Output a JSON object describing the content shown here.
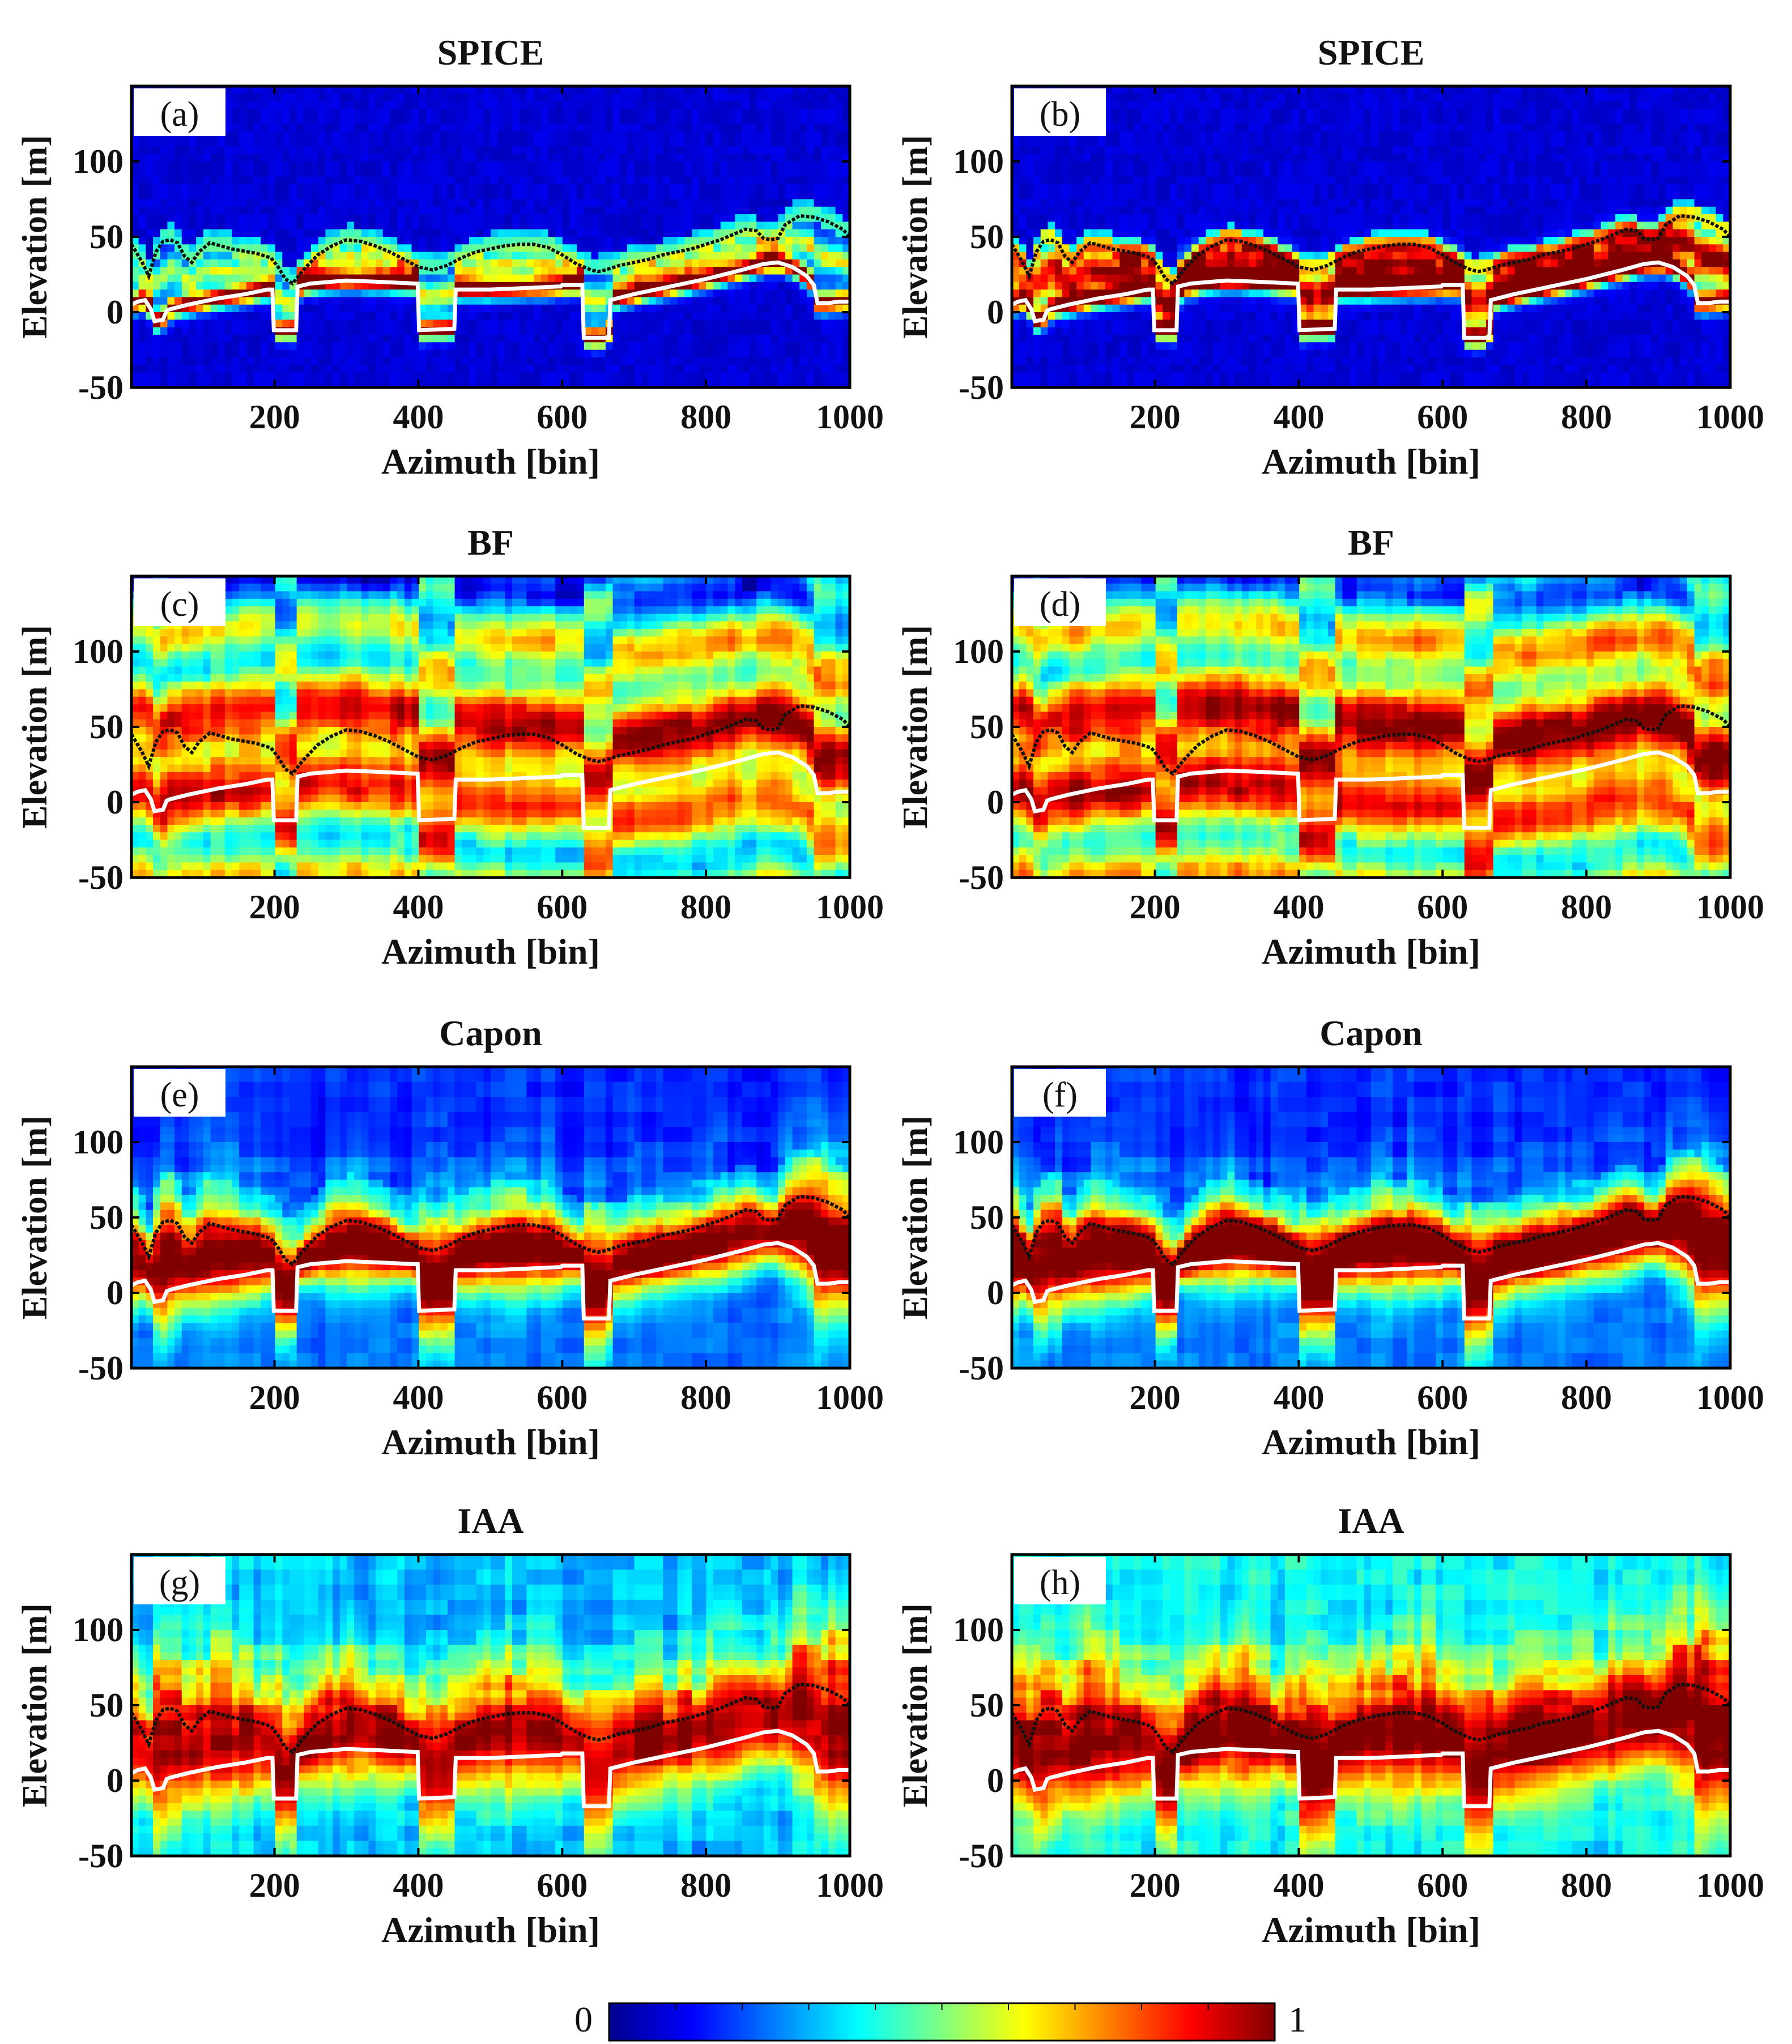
{
  "chart_data": [
    {
      "type": "heatmap",
      "panel_label": "(a)",
      "title": "SPICE",
      "method": "spice",
      "xlabel": "Azimuth [bin]",
      "ylabel": "Elevation [m]",
      "xlim": [
        1,
        1000
      ],
      "ylim": [
        -50,
        150
      ],
      "xticks": [
        "200",
        "400",
        "600",
        "800",
        "1000"
      ],
      "yticks": [
        "-50",
        "0",
        "50",
        "100"
      ],
      "intensity_range": [
        0,
        1
      ]
    },
    {
      "type": "heatmap",
      "panel_label": "(b)",
      "title": "SPICE",
      "method": "spice",
      "xlabel": "Azimuth [bin]",
      "ylabel": "Elevation [m]",
      "xlim": [
        1,
        1000
      ],
      "ylim": [
        -50,
        150
      ],
      "xticks": [
        "200",
        "400",
        "600",
        "800",
        "1000"
      ],
      "yticks": [
        "-50",
        "0",
        "50",
        "100"
      ],
      "intensity_range": [
        0,
        1
      ]
    },
    {
      "type": "heatmap",
      "panel_label": "(c)",
      "title": "BF",
      "method": "bf",
      "xlabel": "Azimuth [bin]",
      "ylabel": "Elevation [m]",
      "xlim": [
        1,
        1000
      ],
      "ylim": [
        -50,
        150
      ],
      "xticks": [
        "200",
        "400",
        "600",
        "800",
        "1000"
      ],
      "yticks": [
        "-50",
        "0",
        "50",
        "100"
      ],
      "intensity_range": [
        0,
        1
      ]
    },
    {
      "type": "heatmap",
      "panel_label": "(d)",
      "title": "BF",
      "method": "bf",
      "xlabel": "Azimuth [bin]",
      "ylabel": "Elevation [m]",
      "xlim": [
        1,
        1000
      ],
      "ylim": [
        -50,
        150
      ],
      "xticks": [
        "200",
        "400",
        "600",
        "800",
        "1000"
      ],
      "yticks": [
        "-50",
        "0",
        "50",
        "100"
      ],
      "intensity_range": [
        0,
        1
      ]
    },
    {
      "type": "heatmap",
      "panel_label": "(e)",
      "title": "Capon",
      "method": "capon",
      "xlabel": "Azimuth [bin]",
      "ylabel": "Elevation [m]",
      "xlim": [
        1,
        1000
      ],
      "ylim": [
        -50,
        150
      ],
      "xticks": [
        "200",
        "400",
        "600",
        "800",
        "1000"
      ],
      "yticks": [
        "-50",
        "0",
        "50",
        "100"
      ],
      "intensity_range": [
        0,
        1
      ]
    },
    {
      "type": "heatmap",
      "panel_label": "(f)",
      "title": "Capon",
      "method": "capon",
      "xlabel": "Azimuth [bin]",
      "ylabel": "Elevation [m]",
      "xlim": [
        1,
        1000
      ],
      "ylim": [
        -50,
        150
      ],
      "xticks": [
        "200",
        "400",
        "600",
        "800",
        "1000"
      ],
      "yticks": [
        "-50",
        "0",
        "50",
        "100"
      ],
      "intensity_range": [
        0,
        1
      ]
    },
    {
      "type": "heatmap",
      "panel_label": "(g)",
      "title": "IAA",
      "method": "iaa",
      "xlabel": "Azimuth [bin]",
      "ylabel": "Elevation [m]",
      "xlim": [
        1,
        1000
      ],
      "ylim": [
        -50,
        150
      ],
      "xticks": [
        "200",
        "400",
        "600",
        "800",
        "1000"
      ],
      "yticks": [
        "-50",
        "0",
        "50",
        "100"
      ],
      "intensity_range": [
        0,
        1
      ]
    },
    {
      "type": "heatmap",
      "panel_label": "(h)",
      "title": "IAA",
      "method": "iaa",
      "xlabel": "Azimuth [bin]",
      "ylabel": "Elevation [m]",
      "xlim": [
        1,
        1000
      ],
      "ylim": [
        -50,
        150
      ],
      "xticks": [
        "200",
        "400",
        "600",
        "800",
        "1000"
      ],
      "yticks": [
        "-50",
        "0",
        "50",
        "100"
      ],
      "intensity_range": [
        0,
        1
      ]
    }
  ],
  "reference_lines": {
    "canopy_top": {
      "color": "#111111",
      "points": [
        [
          1,
          45
        ],
        [
          15,
          34
        ],
        [
          25,
          24
        ],
        [
          35,
          40
        ],
        [
          45,
          47
        ],
        [
          55,
          48
        ],
        [
          65,
          46
        ],
        [
          75,
          37
        ],
        [
          85,
          33
        ],
        [
          95,
          40
        ],
        [
          110,
          46
        ],
        [
          140,
          42
        ],
        [
          175,
          39
        ],
        [
          195,
          36
        ],
        [
          205,
          30
        ],
        [
          215,
          22
        ],
        [
          225,
          19
        ],
        [
          240,
          28
        ],
        [
          260,
          38
        ],
        [
          280,
          44
        ],
        [
          300,
          48
        ],
        [
          320,
          47
        ],
        [
          340,
          44
        ],
        [
          360,
          40
        ],
        [
          380,
          35
        ],
        [
          400,
          30
        ],
        [
          420,
          28
        ],
        [
          440,
          31
        ],
        [
          460,
          36
        ],
        [
          480,
          40
        ],
        [
          500,
          42
        ],
        [
          520,
          44
        ],
        [
          540,
          45
        ],
        [
          560,
          45
        ],
        [
          580,
          43
        ],
        [
          600,
          38
        ],
        [
          620,
          32
        ],
        [
          640,
          28
        ],
        [
          650,
          27
        ],
        [
          660,
          28
        ],
        [
          680,
          31
        ],
        [
          700,
          33
        ],
        [
          720,
          35
        ],
        [
          740,
          38
        ],
        [
          760,
          40
        ],
        [
          780,
          42
        ],
        [
          800,
          45
        ],
        [
          820,
          48
        ],
        [
          840,
          52
        ],
        [
          855,
          55
        ],
        [
          870,
          54
        ],
        [
          880,
          49
        ],
        [
          890,
          48
        ],
        [
          900,
          49
        ],
        [
          910,
          58
        ],
        [
          930,
          64
        ],
        [
          950,
          63
        ],
        [
          970,
          60
        ],
        [
          990,
          55
        ],
        [
          1000,
          50
        ]
      ]
    },
    "ground": {
      "color": "#ffffff",
      "points": [
        [
          1,
          5
        ],
        [
          10,
          7
        ],
        [
          20,
          8
        ],
        [
          28,
          2
        ],
        [
          33,
          -6
        ],
        [
          45,
          -5
        ],
        [
          50,
          1
        ],
        [
          55,
          2
        ],
        [
          80,
          5
        ],
        [
          120,
          9
        ],
        [
          160,
          12
        ],
        [
          190,
          15
        ],
        [
          197,
          15
        ],
        [
          199,
          -12
        ],
        [
          230,
          -12
        ],
        [
          232,
          17
        ],
        [
          250,
          19
        ],
        [
          300,
          21
        ],
        [
          350,
          20
        ],
        [
          395,
          19
        ],
        [
          399,
          19
        ],
        [
          401,
          -12
        ],
        [
          450,
          -11
        ],
        [
          452,
          15
        ],
        [
          500,
          15
        ],
        [
          550,
          16
        ],
        [
          595,
          17
        ],
        [
          598,
          17
        ],
        [
          600,
          18
        ],
        [
          628,
          18
        ],
        [
          630,
          -17
        ],
        [
          665,
          -17
        ],
        [
          667,
          8
        ],
        [
          700,
          12
        ],
        [
          750,
          17
        ],
        [
          800,
          22
        ],
        [
          850,
          28
        ],
        [
          880,
          32
        ],
        [
          900,
          33
        ],
        [
          920,
          30
        ],
        [
          940,
          24
        ],
        [
          950,
          18
        ],
        [
          955,
          6
        ],
        [
          970,
          6
        ],
        [
          985,
          7
        ],
        [
          1000,
          7
        ]
      ]
    }
  },
  "colorbar": {
    "min_label": "0",
    "max_label": "1",
    "colormap": "jet",
    "colors": [
      "#00008f",
      "#0000ff",
      "#00ffff",
      "#ffff00",
      "#ff0000",
      "#800000"
    ]
  },
  "colors": {
    "frame": "#000000",
    "text": "#111111"
  }
}
